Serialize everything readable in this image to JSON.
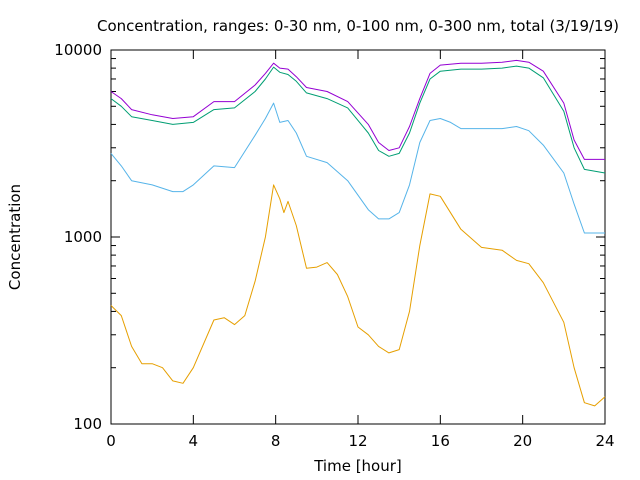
{
  "chart_data": {
    "type": "line",
    "title": "Concentration, ranges: 0-30 nm, 0-100 nm, 0-300 nm, total (3/19/19)",
    "xlabel": "Time [hour]",
    "ylabel": "Concentration",
    "xlim": [
      0,
      24
    ],
    "ylim": [
      100,
      10000
    ],
    "yscale": "log",
    "grid": false,
    "legend": "none",
    "x_ticks": [
      0,
      4,
      8,
      12,
      16,
      20,
      24
    ],
    "y_ticks": [
      100,
      1000,
      10000
    ],
    "series": [
      {
        "color": "#9400d3",
        "points": [
          [
            0,
            6000
          ],
          [
            0.5,
            5500
          ],
          [
            1,
            4800
          ],
          [
            2,
            4500
          ],
          [
            3,
            4300
          ],
          [
            4,
            4400
          ],
          [
            5,
            5300
          ],
          [
            6,
            5300
          ],
          [
            7,
            6500
          ],
          [
            7.5,
            7500
          ],
          [
            7.9,
            8500
          ],
          [
            8.2,
            8000
          ],
          [
            8.6,
            7900
          ],
          [
            9,
            7200
          ],
          [
            9.5,
            6300
          ],
          [
            10.5,
            6000
          ],
          [
            11.5,
            5300
          ],
          [
            12.5,
            4000
          ],
          [
            13,
            3200
          ],
          [
            13.5,
            2900
          ],
          [
            14,
            3000
          ],
          [
            14.5,
            3900
          ],
          [
            15,
            5500
          ],
          [
            15.5,
            7500
          ],
          [
            16,
            8300
          ],
          [
            17,
            8500
          ],
          [
            18,
            8500
          ],
          [
            19,
            8600
          ],
          [
            19.7,
            8800
          ],
          [
            20.3,
            8600
          ],
          [
            21,
            7700
          ],
          [
            22,
            5200
          ],
          [
            22.5,
            3300
          ],
          [
            23,
            2600
          ],
          [
            24,
            2600
          ]
        ]
      },
      {
        "color": "#009e73",
        "points": [
          [
            0,
            5500
          ],
          [
            0.5,
            5000
          ],
          [
            1,
            4400
          ],
          [
            2,
            4200
          ],
          [
            3,
            4000
          ],
          [
            4,
            4100
          ],
          [
            5,
            4800
          ],
          [
            6,
            4900
          ],
          [
            7,
            6000
          ],
          [
            7.5,
            7000
          ],
          [
            7.9,
            8100
          ],
          [
            8.2,
            7600
          ],
          [
            8.6,
            7400
          ],
          [
            9,
            6800
          ],
          [
            9.5,
            5900
          ],
          [
            10.5,
            5500
          ],
          [
            11.5,
            4900
          ],
          [
            12.5,
            3600
          ],
          [
            13,
            2900
          ],
          [
            13.5,
            2700
          ],
          [
            14,
            2800
          ],
          [
            14.5,
            3600
          ],
          [
            15,
            5200
          ],
          [
            15.5,
            7000
          ],
          [
            16,
            7700
          ],
          [
            17,
            7900
          ],
          [
            18,
            7900
          ],
          [
            19,
            8000
          ],
          [
            19.7,
            8200
          ],
          [
            20.3,
            8000
          ],
          [
            21,
            7100
          ],
          [
            22,
            4700
          ],
          [
            22.5,
            3000
          ],
          [
            23,
            2300
          ],
          [
            24,
            2200
          ]
        ]
      },
      {
        "color": "#56b4e9",
        "points": [
          [
            0,
            2800
          ],
          [
            0.5,
            2400
          ],
          [
            1,
            2000
          ],
          [
            2,
            1900
          ],
          [
            3,
            1750
          ],
          [
            3.5,
            1750
          ],
          [
            4,
            1900
          ],
          [
            5,
            2400
          ],
          [
            6,
            2350
          ],
          [
            7,
            3500
          ],
          [
            7.5,
            4300
          ],
          [
            7.9,
            5200
          ],
          [
            8.2,
            4100
          ],
          [
            8.6,
            4200
          ],
          [
            9,
            3600
          ],
          [
            9.5,
            2700
          ],
          [
            10.5,
            2500
          ],
          [
            11.5,
            2000
          ],
          [
            12.5,
            1400
          ],
          [
            13,
            1250
          ],
          [
            13.5,
            1250
          ],
          [
            14,
            1350
          ],
          [
            14.5,
            1900
          ],
          [
            15,
            3200
          ],
          [
            15.5,
            4200
          ],
          [
            16,
            4300
          ],
          [
            16.5,
            4100
          ],
          [
            17,
            3800
          ],
          [
            18,
            3800
          ],
          [
            19,
            3800
          ],
          [
            19.7,
            3900
          ],
          [
            20.3,
            3700
          ],
          [
            21,
            3100
          ],
          [
            22,
            2200
          ],
          [
            22.5,
            1500
          ],
          [
            23,
            1050
          ],
          [
            24,
            1050
          ]
        ]
      },
      {
        "color": "#e69f00",
        "points": [
          [
            0,
            430
          ],
          [
            0.5,
            380
          ],
          [
            1,
            260
          ],
          [
            1.5,
            210
          ],
          [
            2,
            210
          ],
          [
            2.5,
            200
          ],
          [
            3,
            170
          ],
          [
            3.5,
            165
          ],
          [
            4,
            200
          ],
          [
            5,
            360
          ],
          [
            5.5,
            370
          ],
          [
            6,
            340
          ],
          [
            6.5,
            380
          ],
          [
            7,
            580
          ],
          [
            7.5,
            1000
          ],
          [
            7.9,
            1900
          ],
          [
            8.2,
            1600
          ],
          [
            8.4,
            1350
          ],
          [
            8.6,
            1550
          ],
          [
            9,
            1150
          ],
          [
            9.5,
            680
          ],
          [
            10,
            690
          ],
          [
            10.5,
            730
          ],
          [
            11,
            630
          ],
          [
            11.5,
            480
          ],
          [
            12,
            330
          ],
          [
            12.5,
            300
          ],
          [
            13,
            260
          ],
          [
            13.5,
            240
          ],
          [
            14,
            250
          ],
          [
            14.5,
            400
          ],
          [
            15,
            900
          ],
          [
            15.5,
            1700
          ],
          [
            16,
            1650
          ],
          [
            17,
            1100
          ],
          [
            18,
            880
          ],
          [
            19,
            850
          ],
          [
            19.7,
            750
          ],
          [
            20.3,
            720
          ],
          [
            21,
            570
          ],
          [
            22,
            350
          ],
          [
            22.5,
            200
          ],
          [
            23,
            130
          ],
          [
            23.5,
            125
          ],
          [
            24,
            140
          ]
        ]
      }
    ]
  }
}
